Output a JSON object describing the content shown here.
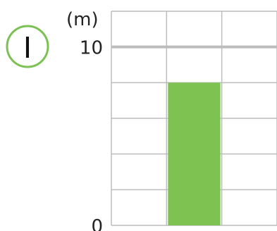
{
  "badge": {
    "label": "I",
    "color": "#7cc154"
  },
  "chart_data": {
    "type": "bar",
    "unit_label": "(m)",
    "categories": [
      "",
      "",
      ""
    ],
    "values": [
      null,
      8,
      null
    ],
    "ylim": [
      0,
      10
    ],
    "y_max_shown": 12,
    "y_ticks": [
      0,
      2,
      4,
      6,
      8,
      10,
      12
    ],
    "y_tick_labels": [
      {
        "value": 0,
        "label": "0"
      },
      {
        "value": 10,
        "label": "10"
      }
    ],
    "emphasized_line": 10,
    "bar_color": "#7ec252",
    "grid_color": "#bdbdbd",
    "grid": true,
    "xlabel": "",
    "ylabel": ""
  }
}
